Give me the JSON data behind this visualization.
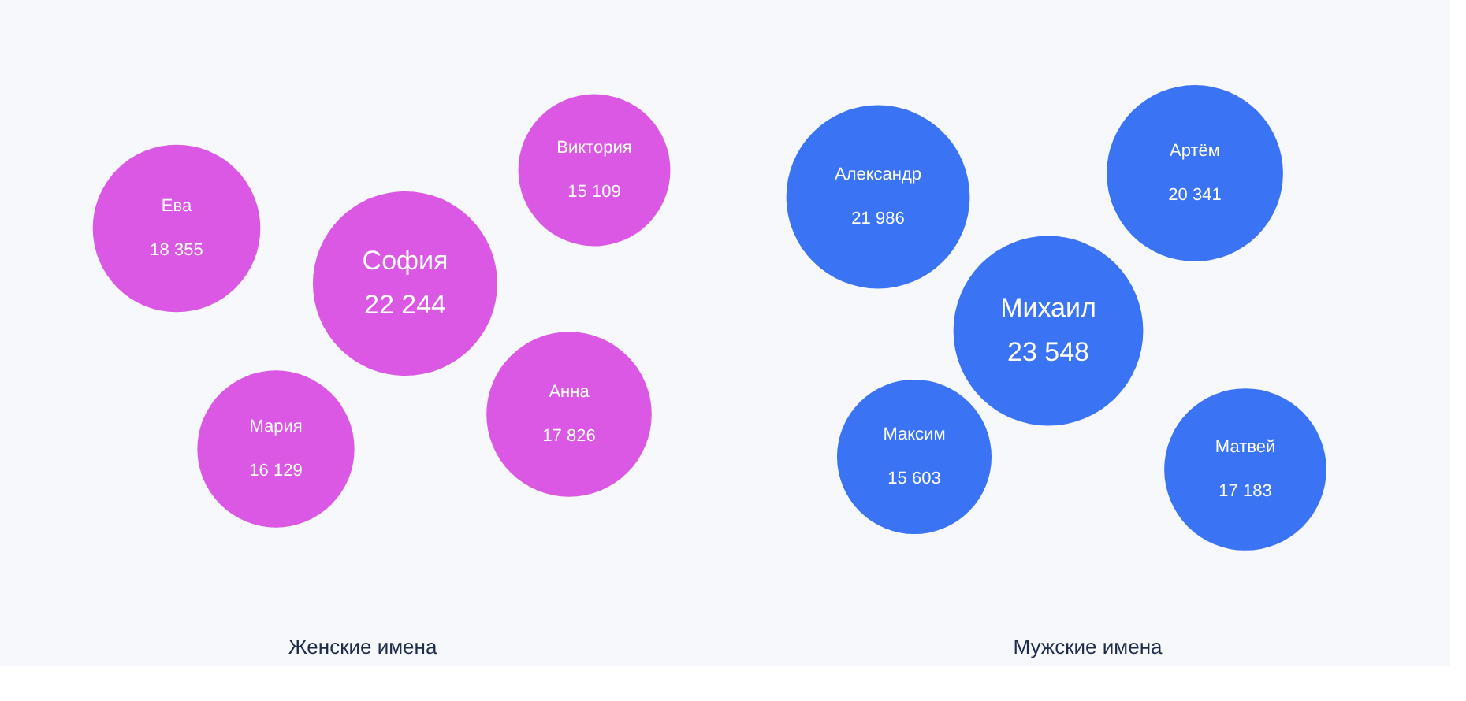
{
  "chart_data": [
    {
      "type": "other",
      "title": "Женские имена",
      "categories": [
        "Ева",
        "София",
        "Виктория",
        "Мария",
        "Анна"
      ],
      "values": [
        18355,
        22244,
        15109,
        16129,
        17826
      ],
      "color": "#d84fe2",
      "data_labels": true
    },
    {
      "type": "other",
      "title": "Мужские имена",
      "categories": [
        "Александр",
        "Артём",
        "Михаил",
        "Максим",
        "Матвей"
      ],
      "values": [
        21986,
        20341,
        23548,
        15603,
        17183
      ],
      "color": "#2f6bf2",
      "data_labels": true
    }
  ]
}
